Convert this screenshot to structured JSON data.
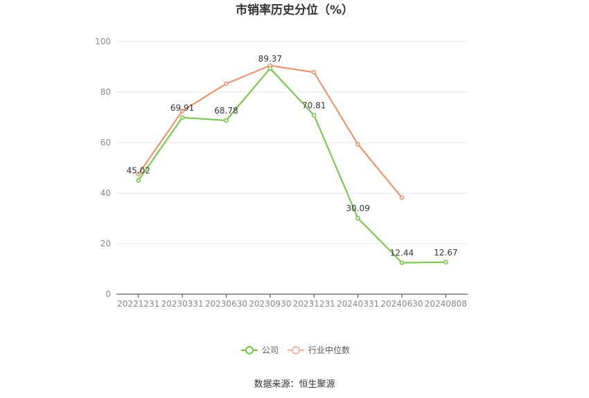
{
  "chart_data": {
    "type": "line",
    "title": "市销率历史分位（%）",
    "xlabel": "",
    "ylabel": "",
    "categories": [
      "20221231",
      "20230331",
      "20230630",
      "20230930",
      "20231231",
      "20240331",
      "20240630",
      "20240808"
    ],
    "ylim": [
      0,
      100
    ],
    "yticks": [
      0,
      20,
      40,
      60,
      80,
      100
    ],
    "grid": true,
    "legend_position": "bottom",
    "series": [
      {
        "name": "公司",
        "color": "#6dc83c",
        "values": [
          45.02,
          69.91,
          68.78,
          89.37,
          70.81,
          30.09,
          12.44,
          12.67
        ],
        "labels": [
          "45.02",
          "69.91",
          "68.78",
          "89.37",
          "70.81",
          "30.09",
          "12.44",
          "12.67"
        ]
      },
      {
        "name": "行业中位数",
        "color": "#f08c5e",
        "values": [
          47.5,
          72.5,
          83.3,
          90.5,
          87.8,
          59.3,
          38.2,
          null
        ]
      }
    ]
  },
  "source_text": "数据来源：恒生聚源"
}
